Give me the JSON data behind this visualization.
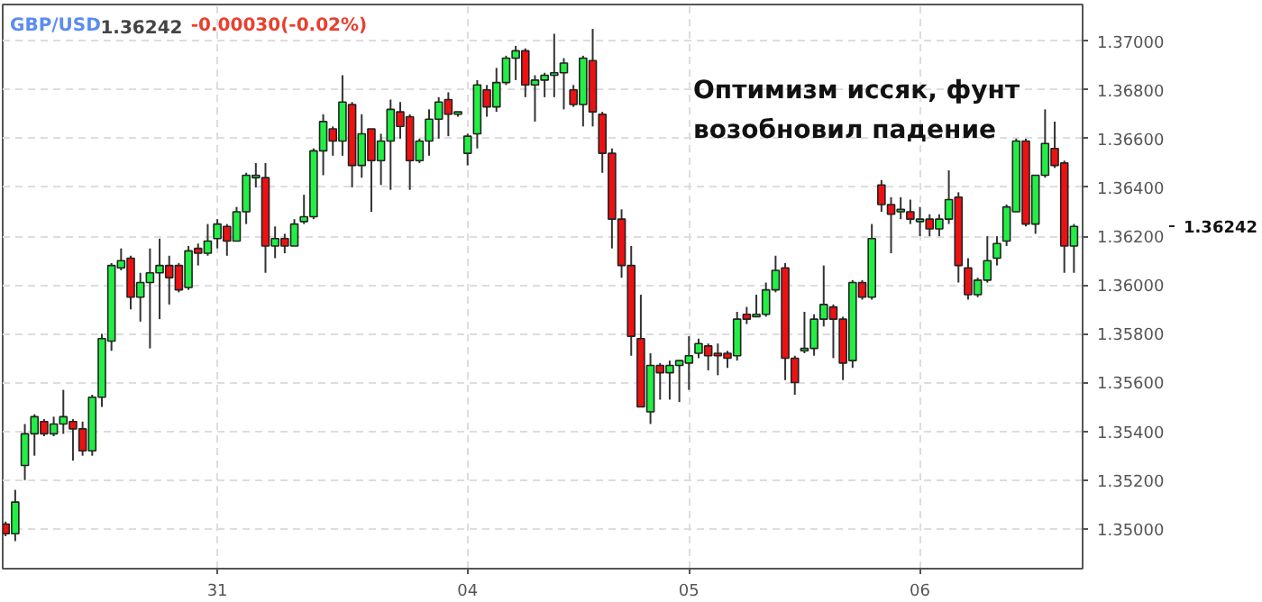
{
  "chart_data": {
    "type": "candlestick",
    "title": "GBP/USD",
    "annotations": [
      "1.36242",
      "-0.00030(-0.02%)",
      "Оптимизм иссяк, фунт\nвозобновил падение",
      "1.36242"
    ],
    "categories": [
      null,
      null,
      null,
      null,
      null,
      null,
      null,
      null,
      null,
      null,
      null,
      null,
      null,
      null,
      null,
      null,
      null,
      null,
      null,
      null,
      null,
      null,
      "31",
      null,
      null,
      null,
      null,
      null,
      null,
      null,
      null,
      null,
      null,
      null,
      null,
      null,
      null,
      null,
      null,
      null,
      null,
      null,
      null,
      null,
      null,
      null,
      null,
      null,
      "04",
      null,
      null,
      null,
      null,
      null,
      null,
      null,
      null,
      null,
      null,
      null,
      null,
      null,
      null,
      null,
      null,
      null,
      null,
      null,
      null,
      null,
      null,
      "05",
      null,
      null,
      null,
      null,
      null,
      null,
      null,
      null,
      null,
      null,
      null,
      null,
      null,
      null,
      null,
      null,
      null,
      null,
      null,
      null,
      null,
      null,
      null,
      "06",
      null,
      null,
      null,
      null,
      null,
      null,
      null,
      null,
      null,
      null,
      null,
      null,
      null,
      null,
      null,
      null
    ],
    "colors": [
      "#ee1111",
      "#22ee44",
      "#22ee44",
      "#22ee44",
      "#ee1111",
      "#22ee44",
      "#22ee44",
      "#ee1111",
      "#ee1111",
      "#22ee44",
      "#22ee44",
      "#22ee44",
      "#22ee44",
      "#ee1111",
      "#22ee44",
      "#22ee44",
      "#22ee44",
      "#ee1111",
      "#ee1111",
      "#22ee44",
      "#ee1111",
      "#22ee44",
      "#22ee44",
      "#ee1111",
      "#22ee44",
      "#22ee44",
      "#22ee44",
      "#ee1111",
      "#22ee44",
      "#ee1111",
      "#22ee44",
      "#22ee44",
      "#22ee44",
      "#22ee44",
      "#ee1111",
      "#22ee44",
      "#ee1111",
      "#22ee44",
      "#ee1111",
      "#22ee44",
      "#22ee44",
      "#ee1111",
      "#ee1111",
      "#22ee44",
      "#22ee44",
      "#22ee44",
      "#ee1111",
      "#22ee44",
      "#22ee44",
      "#22ee44",
      "#ee1111",
      "#22ee44",
      "#22ee44",
      "#22ee44",
      "#ee1111",
      "#22ee44",
      "#22ee44",
      "#22ee44",
      "#22ee44",
      "#ee1111",
      "#22ee44",
      "#ee1111",
      "#ee1111",
      "#ee1111",
      "#ee1111",
      "#ee1111",
      "#ee1111",
      "#22ee44",
      "#ee1111",
      "#22ee44",
      "#22ee44",
      "#22ee44",
      "#22ee44",
      "#ee1111",
      "#ee1111",
      "#ee1111",
      "#22ee44",
      "#ee1111",
      "#22ee44",
      "#22ee44",
      "#22ee44",
      "#ee1111",
      "#ee1111",
      "#22ee44",
      "#22ee44",
      "#22ee44",
      "#ee1111",
      "#ee1111",
      "#22ee44",
      "#ee1111",
      "#22ee44",
      "#ee1111",
      "#ee1111",
      "#22ee44",
      "#ee1111",
      "#22ee44",
      "#ee1111",
      "#22ee44",
      "#22ee44",
      "#ee1111",
      "#ee1111",
      "#22ee44",
      "#22ee44",
      "#22ee44",
      "#22ee44",
      "#22ee44",
      "#ee1111",
      "#22ee44",
      "#22ee44",
      "#ee1111",
      "#ee1111",
      "#22ee44"
    ],
    "ohlc": [
      [
        1.3502,
        1.3503,
        1.3497,
        1.3498
      ],
      [
        1.3498,
        1.3516,
        1.3495,
        1.3511
      ],
      [
        1.3526,
        1.3543,
        1.352,
        1.3539
      ],
      [
        1.3539,
        1.3547,
        1.353,
        1.3546
      ],
      [
        1.3544,
        1.3545,
        1.3538,
        1.3539
      ],
      [
        1.3539,
        1.3546,
        1.3538,
        1.3543
      ],
      [
        1.3543,
        1.3557,
        1.3539,
        1.3546
      ],
      [
        1.3544,
        1.3545,
        1.3528,
        1.3541
      ],
      [
        1.3541,
        1.3544,
        1.353,
        1.3532
      ],
      [
        1.3532,
        1.3555,
        1.353,
        1.3554
      ],
      [
        1.3554,
        1.358,
        1.355,
        1.3578
      ],
      [
        1.3577,
        1.3609,
        1.3573,
        1.3608
      ],
      [
        1.3607,
        1.3615,
        1.3606,
        1.361
      ],
      [
        1.3611,
        1.3612,
        1.359,
        1.3595
      ],
      [
        1.3595,
        1.3605,
        1.3585,
        1.3601
      ],
      [
        1.3601,
        1.3615,
        1.3574,
        1.3605
      ],
      [
        1.3605,
        1.3619,
        1.3586,
        1.3608
      ],
      [
        1.3608,
        1.3612,
        1.3592,
        1.3603
      ],
      [
        1.3608,
        1.3609,
        1.3597,
        1.3598
      ],
      [
        1.3599,
        1.3616,
        1.3598,
        1.3614
      ],
      [
        1.3615,
        1.3617,
        1.3608,
        1.3613
      ],
      [
        1.3613,
        1.3625,
        1.3612,
        1.3618
      ],
      [
        1.3619,
        1.3627,
        1.3615,
        1.3625
      ],
      [
        1.3624,
        1.3625,
        1.3612,
        1.3618
      ],
      [
        1.3618,
        1.3632,
        1.3618,
        1.363
      ],
      [
        1.363,
        1.3646,
        1.3625,
        1.3645
      ],
      [
        1.3644,
        1.365,
        1.364,
        1.3645
      ],
      [
        1.3644,
        1.365,
        1.3605,
        1.3616
      ],
      [
        1.3616,
        1.3624,
        1.3611,
        1.3619
      ],
      [
        1.3619,
        1.3621,
        1.3613,
        1.3616
      ],
      [
        1.3616,
        1.3627,
        1.3616,
        1.3625
      ],
      [
        1.3626,
        1.3637,
        1.3625,
        1.3628
      ],
      [
        1.3628,
        1.3656,
        1.3627,
        1.3655
      ],
      [
        1.3655,
        1.367,
        1.3645,
        1.3667
      ],
      [
        1.3664,
        1.3665,
        1.3653,
        1.3659
      ],
      [
        1.3659,
        1.3686,
        1.3653,
        1.3675
      ],
      [
        1.3674,
        1.3675,
        1.364,
        1.3649
      ],
      [
        1.3649,
        1.367,
        1.3644,
        1.3662
      ],
      [
        1.3664,
        1.3664,
        1.363,
        1.3651
      ],
      [
        1.3651,
        1.3662,
        1.3641,
        1.3659
      ],
      [
        1.3659,
        1.3676,
        1.3639,
        1.3672
      ],
      [
        1.3671,
        1.3675,
        1.366,
        1.3665
      ],
      [
        1.3669,
        1.367,
        1.3639,
        1.3651
      ],
      [
        1.3651,
        1.366,
        1.365,
        1.3659
      ],
      [
        1.3659,
        1.3672,
        1.3653,
        1.3668
      ],
      [
        1.3668,
        1.3677,
        1.366,
        1.3675
      ],
      [
        1.3676,
        1.3679,
        1.3661,
        1.367
      ],
      [
        1.367,
        1.3671,
        1.3669,
        1.3671
      ],
      [
        1.3654,
        1.3662,
        1.3649,
        1.3661
      ],
      [
        1.3662,
        1.3684,
        1.3656,
        1.3682
      ],
      [
        1.368,
        1.3682,
        1.3669,
        1.3673
      ],
      [
        1.3673,
        1.3689,
        1.3671,
        1.3683
      ],
      [
        1.3683,
        1.3694,
        1.3682,
        1.3693
      ],
      [
        1.3693,
        1.3698,
        1.3684,
        1.3696
      ],
      [
        1.3696,
        1.3697,
        1.3677,
        1.3682
      ],
      [
        1.3682,
        1.3686,
        1.3667,
        1.3684
      ],
      [
        1.3684,
        1.3687,
        1.3677,
        1.3686
      ],
      [
        1.3686,
        1.3703,
        1.3677,
        1.3687
      ],
      [
        1.3687,
        1.3693,
        1.3672,
        1.3691
      ],
      [
        1.368,
        1.3682,
        1.3673,
        1.3674
      ],
      [
        1.3674,
        1.3694,
        1.3665,
        1.3693
      ],
      [
        1.3692,
        1.3705,
        1.3665,
        1.3671
      ],
      [
        1.367,
        1.3671,
        1.3646,
        1.3654
      ],
      [
        1.3654,
        1.3656,
        1.3615,
        1.3627
      ],
      [
        1.3627,
        1.3631,
        1.3603,
        1.3608
      ],
      [
        1.3608,
        1.3616,
        1.3571,
        1.3579
      ],
      [
        1.3578,
        1.3596,
        1.355,
        1.355
      ],
      [
        1.3548,
        1.3572,
        1.3543,
        1.3567
      ],
      [
        1.3567,
        1.3568,
        1.3553,
        1.3564
      ],
      [
        1.3564,
        1.3569,
        1.3553,
        1.3567
      ],
      [
        1.3567,
        1.3569,
        1.3552,
        1.3569
      ],
      [
        1.3568,
        1.3579,
        1.3557,
        1.3571
      ],
      [
        1.3572,
        1.3578,
        1.357,
        1.3576
      ],
      [
        1.3575,
        1.3576,
        1.3565,
        1.3571
      ],
      [
        1.3572,
        1.3576,
        1.3563,
        1.3571
      ],
      [
        1.3572,
        1.3573,
        1.3566,
        1.357
      ],
      [
        1.3571,
        1.3589,
        1.3569,
        1.3586
      ],
      [
        1.3588,
        1.3591,
        1.3584,
        1.3586
      ],
      [
        1.3587,
        1.3596,
        1.3587,
        1.3588
      ],
      [
        1.3588,
        1.3601,
        1.3587,
        1.3598
      ],
      [
        1.3598,
        1.3612,
        1.3597,
        1.3606
      ],
      [
        1.3607,
        1.3609,
        1.3561,
        1.357
      ],
      [
        1.357,
        1.3571,
        1.3555,
        1.356
      ],
      [
        1.3573,
        1.3589,
        1.3572,
        1.3574
      ],
      [
        1.3574,
        1.3588,
        1.3571,
        1.3586
      ],
      [
        1.3586,
        1.3608,
        1.3583,
        1.3592
      ],
      [
        1.3591,
        1.3592,
        1.357,
        1.3586
      ],
      [
        1.3586,
        1.3587,
        1.3561,
        1.3568
      ],
      [
        1.3569,
        1.3602,
        1.3566,
        1.3601
      ],
      [
        1.3601,
        1.3602,
        1.3594,
        1.3595
      ],
      [
        1.3595,
        1.3625,
        1.3594,
        1.3619
      ],
      [
        1.3641,
        1.3643,
        1.363,
        1.3633
      ],
      [
        1.3633,
        1.3636,
        1.3613,
        1.3629
      ],
      [
        1.363,
        1.3636,
        1.3627,
        1.3631
      ],
      [
        1.363,
        1.3635,
        1.3625,
        1.3627
      ],
      [
        1.3626,
        1.3632,
        1.362,
        1.3627
      ],
      [
        1.3627,
        1.3629,
        1.362,
        1.3623
      ],
      [
        1.3623,
        1.3629,
        1.362,
        1.3627
      ],
      [
        1.3627,
        1.3647,
        1.3625,
        1.3635
      ],
      [
        1.3636,
        1.3638,
        1.3601,
        1.3608
      ],
      [
        1.3607,
        1.3611,
        1.3594,
        1.3596
      ],
      [
        1.3596,
        1.3603,
        1.3595,
        1.3602
      ],
      [
        1.3602,
        1.362,
        1.3601,
        1.361
      ],
      [
        1.3611,
        1.362,
        1.3608,
        1.3617
      ],
      [
        1.3618,
        1.3633,
        1.3616,
        1.3632
      ],
      [
        1.363,
        1.366,
        1.363,
        1.3659
      ],
      [
        1.3659,
        1.366,
        1.3624,
        1.3625
      ],
      [
        1.3625,
        1.3645,
        1.3621,
        1.3645
      ],
      [
        1.3645,
        1.3672,
        1.3644,
        1.3658
      ],
      [
        1.3656,
        1.3667,
        1.3648,
        1.3649
      ],
      [
        1.365,
        1.3651,
        1.3605,
        1.3616
      ],
      [
        1.3616,
        1.3625,
        1.3605,
        1.3624
      ]
    ],
    "ylim": [
      1.34837,
      1.3715
    ],
    "yticks": [
      {
        "value": 1.35,
        "label": "1.35000"
      },
      {
        "value": 1.352,
        "label": "1.35200"
      },
      {
        "value": 1.354,
        "label": "1.35400"
      },
      {
        "value": 1.356,
        "label": "1.35600"
      },
      {
        "value": 1.358,
        "label": "1.35800"
      },
      {
        "value": 1.36,
        "label": "1.36000"
      },
      {
        "value": 1.362,
        "label": "1.36200"
      },
      {
        "value": 1.364,
        "label": "1.36400"
      },
      {
        "value": 1.366,
        "label": "1.36600"
      },
      {
        "value": 1.368,
        "label": "1.36800"
      },
      {
        "value": 1.37,
        "label": "1.37000"
      }
    ],
    "grid": true
  }
}
